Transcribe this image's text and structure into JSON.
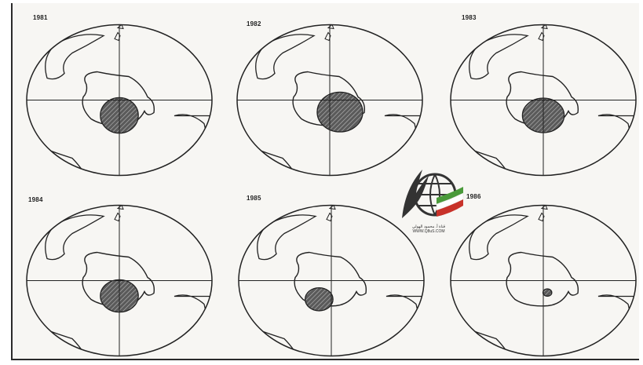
{
  "panels": [
    {
      "year": "1981",
      "hole": [
        0.5,
        0.6,
        0.3,
        0.34
      ]
    },
    {
      "year": "1982",
      "hole": [
        0.55,
        0.58,
        0.36,
        0.38
      ]
    },
    {
      "year": "1983",
      "hole": [
        0.5,
        0.6,
        0.33,
        0.33
      ]
    },
    {
      "year": "1984",
      "hole": [
        0.5,
        0.6,
        0.3,
        0.31
      ]
    },
    {
      "year": "1985",
      "hole": [
        0.44,
        0.62,
        0.22,
        0.22
      ]
    },
    {
      "year": "1986",
      "hole": [
        0.52,
        0.58,
        0.07,
        0.07
      ]
    }
  ],
  "watermark": {
    "caption_line1": "قناة أ. محمود الهولي",
    "caption_line2": "WWW.Q8uS.COM",
    "colors": {
      "green": "#4a9a3a",
      "red": "#c8322a",
      "dark": "#333333"
    }
  }
}
